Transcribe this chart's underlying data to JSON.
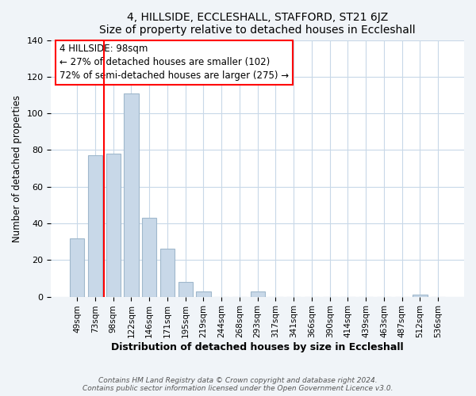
{
  "title": "4, HILLSIDE, ECCLESHALL, STAFFORD, ST21 6JZ",
  "subtitle": "Size of property relative to detached houses in Eccleshall",
  "xlabel": "Distribution of detached houses by size in Eccleshall",
  "ylabel": "Number of detached properties",
  "bar_labels": [
    "49sqm",
    "73sqm",
    "98sqm",
    "122sqm",
    "146sqm",
    "171sqm",
    "195sqm",
    "219sqm",
    "244sqm",
    "268sqm",
    "293sqm",
    "317sqm",
    "341sqm",
    "366sqm",
    "390sqm",
    "414sqm",
    "439sqm",
    "463sqm",
    "487sqm",
    "512sqm",
    "536sqm"
  ],
  "bar_values": [
    32,
    77,
    78,
    111,
    43,
    26,
    8,
    3,
    0,
    0,
    3,
    0,
    0,
    0,
    0,
    0,
    0,
    0,
    0,
    1,
    0
  ],
  "bar_color": "#c8d8e8",
  "bar_edge_color": "#a0b8cc",
  "ylim": [
    0,
    140
  ],
  "yticks": [
    0,
    20,
    40,
    60,
    80,
    100,
    120,
    140
  ],
  "red_line_x": 2.0,
  "annotation_title": "4 HILLSIDE: 98sqm",
  "annotation_line1": "← 27% of detached houses are smaller (102)",
  "annotation_line2": "72% of semi-detached houses are larger (275) →",
  "footer_line1": "Contains HM Land Registry data © Crown copyright and database right 2024.",
  "footer_line2": "Contains public sector information licensed under the Open Government Licence v3.0.",
  "background_color": "#f0f4f8",
  "plot_bg_color": "#ffffff",
  "grid_color": "#c8d8e8"
}
